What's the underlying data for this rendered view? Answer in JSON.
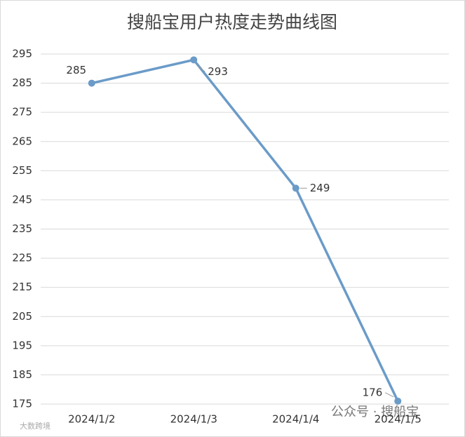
{
  "chart_data": {
    "type": "line",
    "title": "搜船宝用户热度走势曲线图",
    "categories": [
      "2024/1/2",
      "2024/1/3",
      "2024/1/4",
      "2024/1/5"
    ],
    "series": [
      {
        "name": "搜船宝",
        "color": "#6b9bc8",
        "values": [
          285,
          293,
          249,
          176
        ]
      }
    ],
    "ylim": [
      175,
      295
    ],
    "yticks": [
      175,
      185,
      195,
      205,
      215,
      225,
      235,
      245,
      255,
      265,
      275,
      285,
      295
    ],
    "grid": true
  },
  "watermark": "公众号 · 搜船宝",
  "corner_watermark": "大数跨境"
}
